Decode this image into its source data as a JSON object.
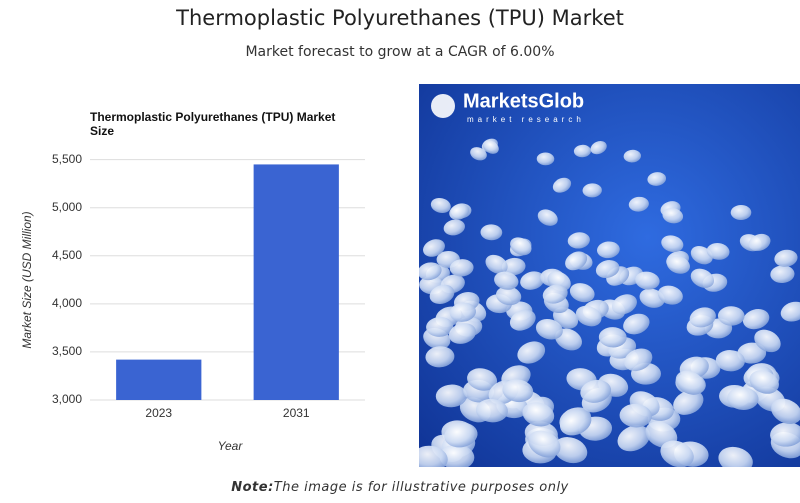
{
  "header": {
    "title": "Thermoplastic Polyurethanes (TPU) Market",
    "subtitle": "Market forecast to grow at a CAGR of 6.00%"
  },
  "chart_data": {
    "type": "bar",
    "title": "Thermoplastic Polyurethanes (TPU) Market Size",
    "x_label": "Year",
    "y_label": "Market Size (USD Million)",
    "categories": [
      "2023",
      "2031"
    ],
    "values": [
      3420,
      5450
    ],
    "color": "#3a64d2",
    "ylim": [
      3000,
      5600
    ],
    "yticks": [
      {
        "value": 3000,
        "label": "3,000"
      },
      {
        "value": 3500,
        "label": "3,500"
      },
      {
        "value": 4000,
        "label": "4,000"
      },
      {
        "value": 4500,
        "label": "4,500"
      },
      {
        "value": 5000,
        "label": "5,000"
      },
      {
        "value": 5500,
        "label": "5,500"
      }
    ],
    "grid": true
  },
  "image": {
    "logo_name": "MarketsGlob",
    "logo_tagline": "market research"
  },
  "note": {
    "label": "Note:",
    "text": "The image is for illustrative purposes only"
  }
}
